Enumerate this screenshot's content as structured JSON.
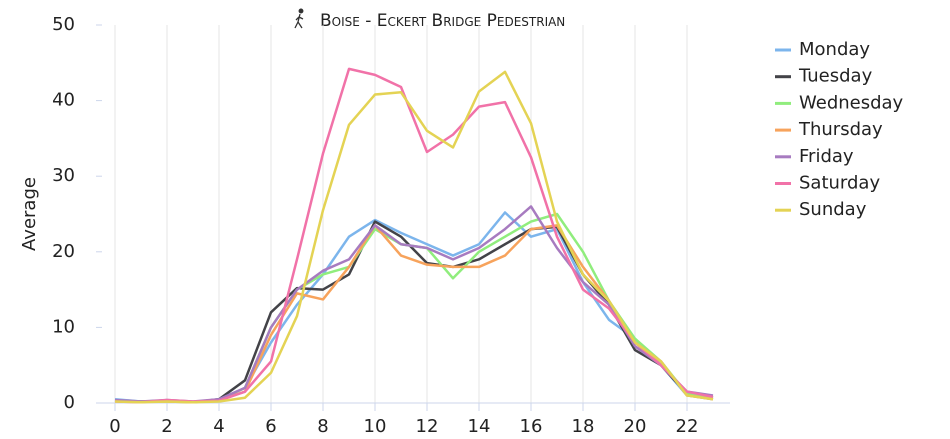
{
  "chart_data": {
    "type": "line",
    "title": "Boise - Eckert Bridge Pedestrian",
    "y_label": "Average",
    "x": [
      0,
      1,
      2,
      3,
      4,
      5,
      6,
      7,
      8,
      9,
      10,
      11,
      12,
      13,
      14,
      15,
      16,
      17,
      18,
      19,
      20,
      21,
      22,
      23
    ],
    "xlim": [
      -0.5,
      23.5
    ],
    "xticks": [
      0,
      2,
      4,
      6,
      8,
      10,
      12,
      14,
      16,
      18,
      20,
      22
    ],
    "ylim": [
      0,
      50
    ],
    "yticks": [
      0,
      10,
      20,
      30,
      40,
      50
    ],
    "grid": "x",
    "legend": "right",
    "series": [
      {
        "name": "Monday",
        "color": "#7cb5ec",
        "values": [
          0.5,
          0.2,
          0.3,
          0.1,
          0.5,
          2,
          8,
          13,
          17,
          22,
          24.2,
          22.5,
          21,
          19.5,
          21,
          25.2,
          22,
          23,
          16,
          11,
          8.5,
          5,
          1,
          0.5
        ]
      },
      {
        "name": "Tuesday",
        "color": "#434348",
        "values": [
          0.3,
          0.2,
          0.3,
          0.1,
          0.5,
          3,
          12,
          15.2,
          15,
          17,
          24,
          22,
          18.5,
          18,
          19,
          21,
          23,
          23.3,
          17,
          13,
          7,
          5,
          1.2,
          0.7
        ]
      },
      {
        "name": "Wednesday",
        "color": "#90ed7d",
        "values": [
          0.3,
          0.2,
          0.2,
          0.1,
          0.4,
          2,
          10,
          15,
          17,
          18,
          23,
          21,
          20.5,
          16.5,
          20,
          22,
          24,
          25,
          20,
          13.5,
          8.5,
          5.5,
          1.2,
          0.7
        ]
      },
      {
        "name": "Thursday",
        "color": "#f7a35c",
        "values": [
          0.3,
          0.2,
          0.2,
          0.1,
          0.4,
          1.5,
          9,
          14.5,
          13.7,
          18,
          23.5,
          19.5,
          18.3,
          18,
          18,
          19.5,
          23,
          23.5,
          18,
          13.5,
          8,
          5.5,
          1,
          0.5
        ]
      },
      {
        "name": "Friday",
        "color": "#a77bc0",
        "values": [
          0.4,
          0.2,
          0.4,
          0.2,
          0.5,
          2,
          10,
          15,
          17.5,
          19,
          23.5,
          21,
          20.5,
          19,
          20.5,
          23,
          26,
          20.5,
          16,
          13,
          7.5,
          5,
          1.5,
          1
        ]
      },
      {
        "name": "Saturday",
        "color": "#f172a8",
        "values": [
          0.2,
          0.1,
          0.4,
          0.2,
          0.3,
          1.5,
          5.5,
          19,
          33,
          44.2,
          43.4,
          41.8,
          33.2,
          35.5,
          39.2,
          39.8,
          32.5,
          22,
          15,
          12.5,
          8,
          5,
          1.5,
          0.8
        ]
      },
      {
        "name": "Sunday",
        "color": "#e4d354",
        "values": [
          0.2,
          0.1,
          0.2,
          0.1,
          0.2,
          0.7,
          4,
          11.5,
          25.5,
          36.8,
          40.8,
          41.1,
          36,
          33.8,
          41.2,
          43.8,
          37,
          24,
          17,
          13.5,
          8,
          5.5,
          1,
          0.5
        ]
      }
    ]
  }
}
